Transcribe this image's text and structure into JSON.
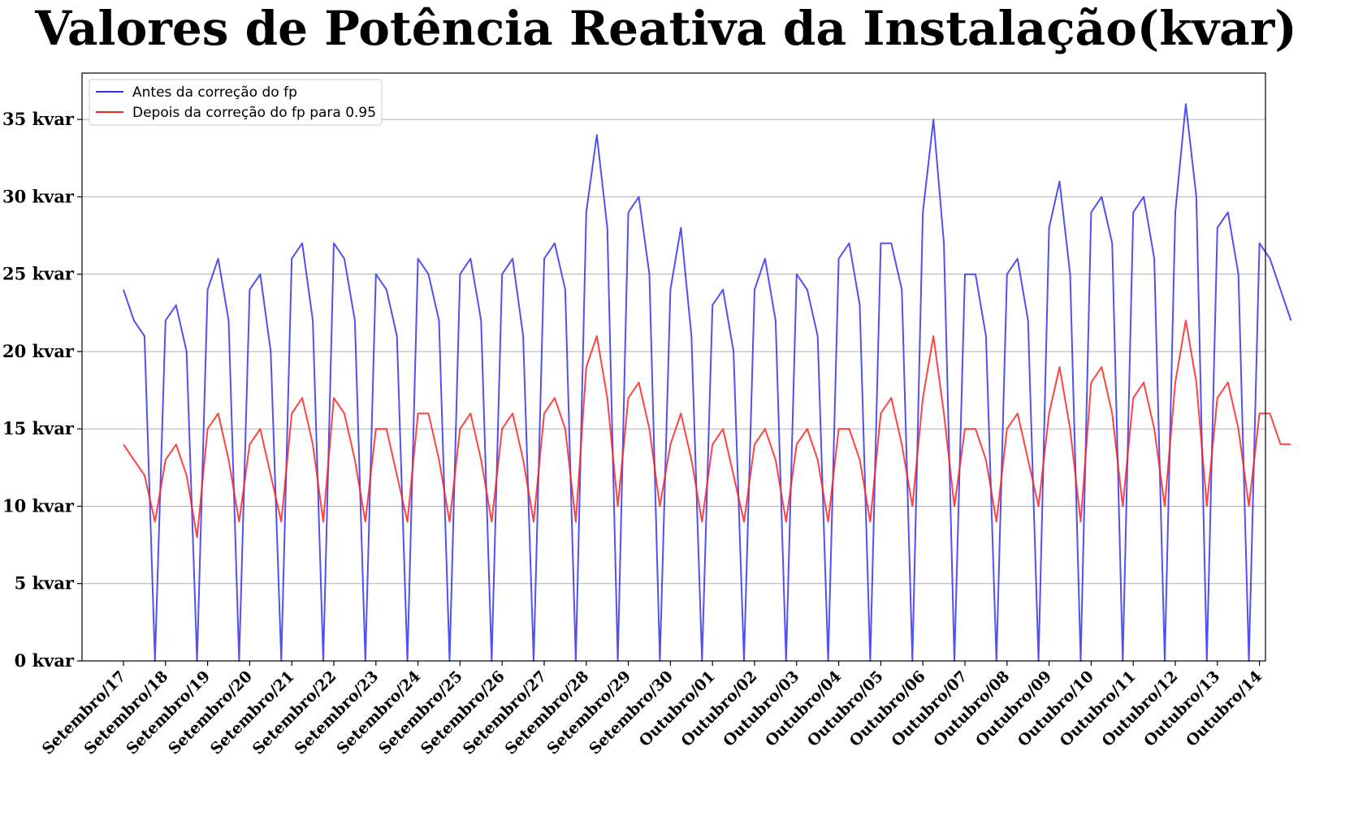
{
  "chart_data": {
    "type": "line",
    "title": "Valores de Potência Reativa da Instalação(kvar)",
    "xlabel": "",
    "ylabel": "",
    "ylim": [
      0,
      38
    ],
    "grid": "horizontal",
    "legend_position": "top-left",
    "y_ticks": [
      {
        "value": 0,
        "label": "0 kvar"
      },
      {
        "value": 5,
        "label": "5 kvar"
      },
      {
        "value": 10,
        "label": "10 kvar"
      },
      {
        "value": 15,
        "label": "15 kvar"
      },
      {
        "value": 20,
        "label": "20 kvar"
      },
      {
        "value": 25,
        "label": "25 kvar"
      },
      {
        "value": 30,
        "label": "30 kvar"
      },
      {
        "value": 35,
        "label": "35 kvar"
      }
    ],
    "categories": [
      "Setembro/17",
      "Setembro/18",
      "Setembro/19",
      "Setembro/20",
      "Setembro/21",
      "Setembro/22",
      "Setembro/23",
      "Setembro/24",
      "Setembro/25",
      "Setembro/26",
      "Setembro/27",
      "Setembro/28",
      "Setembro/29",
      "Setembro/30",
      "Outubro/01",
      "Outubro/02",
      "Outubro/03",
      "Outubro/04",
      "Outubro/05",
      "Outubro/06",
      "Outubro/07",
      "Outubro/08",
      "Outubro/09",
      "Outubro/10",
      "Outubro/11",
      "Outubro/12",
      "Outubro/13",
      "Outubro/14"
    ],
    "series": [
      {
        "name": "Antes da correção do fp",
        "color": "#3333ee",
        "x": [
          0.0,
          0.25,
          0.5,
          0.75,
          1.0,
          1.25,
          1.5,
          1.75,
          2.0,
          2.25,
          2.5,
          2.75,
          3.0,
          3.25,
          3.5,
          3.75,
          4.0,
          4.25,
          4.5,
          4.75,
          5.0,
          5.25,
          5.5,
          5.75,
          6.0,
          6.25,
          6.5,
          6.75,
          7.0,
          7.25,
          7.5,
          7.75,
          8.0,
          8.25,
          8.5,
          8.75,
          9.0,
          9.25,
          9.5,
          9.75,
          10.0,
          10.25,
          10.5,
          10.75,
          11.0,
          11.25,
          11.5,
          11.75,
          12.0,
          12.25,
          12.5,
          12.75,
          13.0,
          13.25,
          13.5,
          13.75,
          14.0,
          14.25,
          14.5,
          14.75,
          15.0,
          15.25,
          15.5,
          15.75,
          16.0,
          16.25,
          16.5,
          16.75,
          17.0,
          17.25,
          17.5,
          17.75,
          18.0,
          18.25,
          18.5,
          18.75,
          19.0,
          19.25,
          19.5,
          19.75,
          20.0,
          20.25,
          20.5,
          20.75,
          21.0,
          21.25,
          21.5,
          21.75,
          22.0,
          22.25,
          22.5,
          22.75,
          23.0,
          23.25,
          23.5,
          23.75,
          24.0,
          24.25,
          24.5,
          24.75,
          25.0,
          25.25,
          25.5,
          25.75,
          26.0,
          26.25,
          26.5,
          26.75,
          27.0,
          27.25,
          27.5,
          27.75
        ],
        "values": [
          24,
          22,
          21,
          0,
          22,
          23,
          20,
          0,
          24,
          26,
          22,
          0,
          24,
          25,
          20,
          0,
          26,
          27,
          22,
          0,
          27,
          26,
          22,
          0,
          25,
          24,
          21,
          0,
          26,
          25,
          22,
          0,
          25,
          26,
          22,
          0,
          25,
          26,
          21,
          0,
          26,
          27,
          24,
          0,
          29,
          34,
          28,
          0,
          29,
          30,
          25,
          0,
          24,
          28,
          21,
          0,
          23,
          24,
          20,
          0,
          24,
          26,
          22,
          0,
          25,
          24,
          21,
          0,
          26,
          27,
          23,
          0,
          27,
          27,
          24,
          0,
          29,
          35,
          27,
          0,
          25,
          25,
          21,
          0,
          25,
          26,
          22,
          0,
          28,
          31,
          25,
          0,
          29,
          30,
          27,
          0,
          29,
          30,
          26,
          0,
          29,
          36,
          30,
          0,
          28,
          29,
          25,
          0,
          27,
          26,
          24,
          22
        ]
      },
      {
        "name": "Depois da correção do fp para 0.95",
        "color": "#ff2222",
        "x": [
          0.0,
          0.25,
          0.5,
          0.75,
          1.0,
          1.25,
          1.5,
          1.75,
          2.0,
          2.25,
          2.5,
          2.75,
          3.0,
          3.25,
          3.5,
          3.75,
          4.0,
          4.25,
          4.5,
          4.75,
          5.0,
          5.25,
          5.5,
          5.75,
          6.0,
          6.25,
          6.5,
          6.75,
          7.0,
          7.25,
          7.5,
          7.75,
          8.0,
          8.25,
          8.5,
          8.75,
          9.0,
          9.25,
          9.5,
          9.75,
          10.0,
          10.25,
          10.5,
          10.75,
          11.0,
          11.25,
          11.5,
          11.75,
          12.0,
          12.25,
          12.5,
          12.75,
          13.0,
          13.25,
          13.5,
          13.75,
          14.0,
          14.25,
          14.5,
          14.75,
          15.0,
          15.25,
          15.5,
          15.75,
          16.0,
          16.25,
          16.5,
          16.75,
          17.0,
          17.25,
          17.5,
          17.75,
          18.0,
          18.25,
          18.5,
          18.75,
          19.0,
          19.25,
          19.5,
          19.75,
          20.0,
          20.25,
          20.5,
          20.75,
          21.0,
          21.25,
          21.5,
          21.75,
          22.0,
          22.25,
          22.5,
          22.75,
          23.0,
          23.25,
          23.5,
          23.75,
          24.0,
          24.25,
          24.5,
          24.75,
          25.0,
          25.25,
          25.5,
          25.75,
          26.0,
          26.25,
          26.5,
          26.75,
          27.0,
          27.25,
          27.5,
          27.75
        ],
        "values": [
          14,
          13,
          12,
          9,
          13,
          14,
          12,
          8,
          15,
          16,
          13,
          9,
          14,
          15,
          12,
          9,
          16,
          17,
          14,
          9,
          17,
          16,
          13,
          9,
          15,
          15,
          12,
          9,
          16,
          16,
          13,
          9,
          15,
          16,
          13,
          9,
          15,
          16,
          13,
          9,
          16,
          17,
          15,
          9,
          19,
          21,
          17,
          10,
          17,
          18,
          15,
          10,
          14,
          16,
          13,
          9,
          14,
          15,
          12,
          9,
          14,
          15,
          13,
          9,
          14,
          15,
          13,
          9,
          15,
          15,
          13,
          9,
          16,
          17,
          14,
          10,
          17,
          21,
          16,
          10,
          15,
          15,
          13,
          9,
          15,
          16,
          13,
          10,
          16,
          19,
          15,
          9,
          18,
          19,
          16,
          10,
          17,
          18,
          15,
          10,
          18,
          22,
          18,
          10,
          17,
          18,
          15,
          10,
          16,
          16,
          14,
          14
        ]
      }
    ]
  }
}
